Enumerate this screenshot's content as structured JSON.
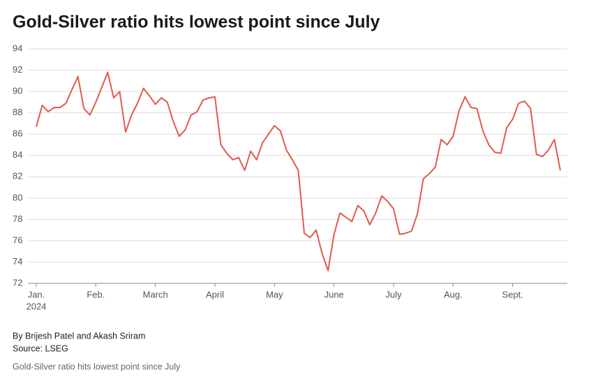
{
  "chart_data": {
    "type": "line",
    "title": "Gold-Silver ratio hits lowest point since July",
    "byline": "By Brijesh Patel and Akash Sriram",
    "source": "Source: LSEG",
    "note": "Gold-Silver ratio hits lowest point since July",
    "year_label": "2024",
    "categories": [
      "Jan.",
      null,
      null,
      null,
      null,
      null,
      null,
      null,
      null,
      null,
      "Feb.",
      null,
      null,
      null,
      null,
      null,
      null,
      null,
      null,
      null,
      "March",
      null,
      null,
      null,
      null,
      null,
      null,
      null,
      null,
      null,
      "April",
      null,
      null,
      null,
      null,
      null,
      null,
      null,
      null,
      null,
      "May",
      null,
      null,
      null,
      null,
      null,
      null,
      null,
      null,
      null,
      "June",
      null,
      null,
      null,
      null,
      null,
      null,
      null,
      null,
      null,
      "July",
      null,
      null,
      null,
      null,
      null,
      null,
      null,
      null,
      null,
      "Aug.",
      null,
      null,
      null,
      null,
      null,
      null,
      null,
      null,
      null,
      "Sept.",
      null,
      null,
      null,
      null,
      null,
      null,
      null,
      null
    ],
    "series": [
      {
        "name": "Gold-Silver ratio",
        "color": "#e2594f",
        "values": [
          86.7,
          88.7,
          88.1,
          88.5,
          88.5,
          88.9,
          90.2,
          91.4,
          88.4,
          87.8,
          89.0,
          90.4,
          91.8,
          89.4,
          90.0,
          86.2,
          87.8,
          88.9,
          90.3,
          89.6,
          88.8,
          89.4,
          89.0,
          87.2,
          85.8,
          86.4,
          87.8,
          88.1,
          89.2,
          89.4,
          89.5,
          85.0,
          84.2,
          83.6,
          83.8,
          82.6,
          84.4,
          83.6,
          85.2,
          86.0,
          86.8,
          86.3,
          84.5,
          83.6,
          82.6,
          76.7,
          76.3,
          77.0,
          74.8,
          73.2,
          76.6,
          78.6,
          78.2,
          77.8,
          79.3,
          78.8,
          77.5,
          78.6,
          80.2,
          79.7,
          79.0,
          76.6,
          76.7,
          76.9,
          78.5,
          81.8,
          82.3,
          82.9,
          85.5,
          85.0,
          85.8,
          88.2,
          89.5,
          88.5,
          88.4,
          86.3,
          85.0,
          84.3,
          84.2,
          86.6,
          87.4,
          88.9,
          89.1,
          88.4,
          84.1,
          83.9,
          84.5,
          85.5,
          82.6
        ]
      }
    ],
    "ylim": [
      72,
      94
    ],
    "yticks": [
      72,
      74,
      76,
      78,
      80,
      82,
      84,
      86,
      88,
      90,
      92,
      94
    ],
    "grid": true
  }
}
